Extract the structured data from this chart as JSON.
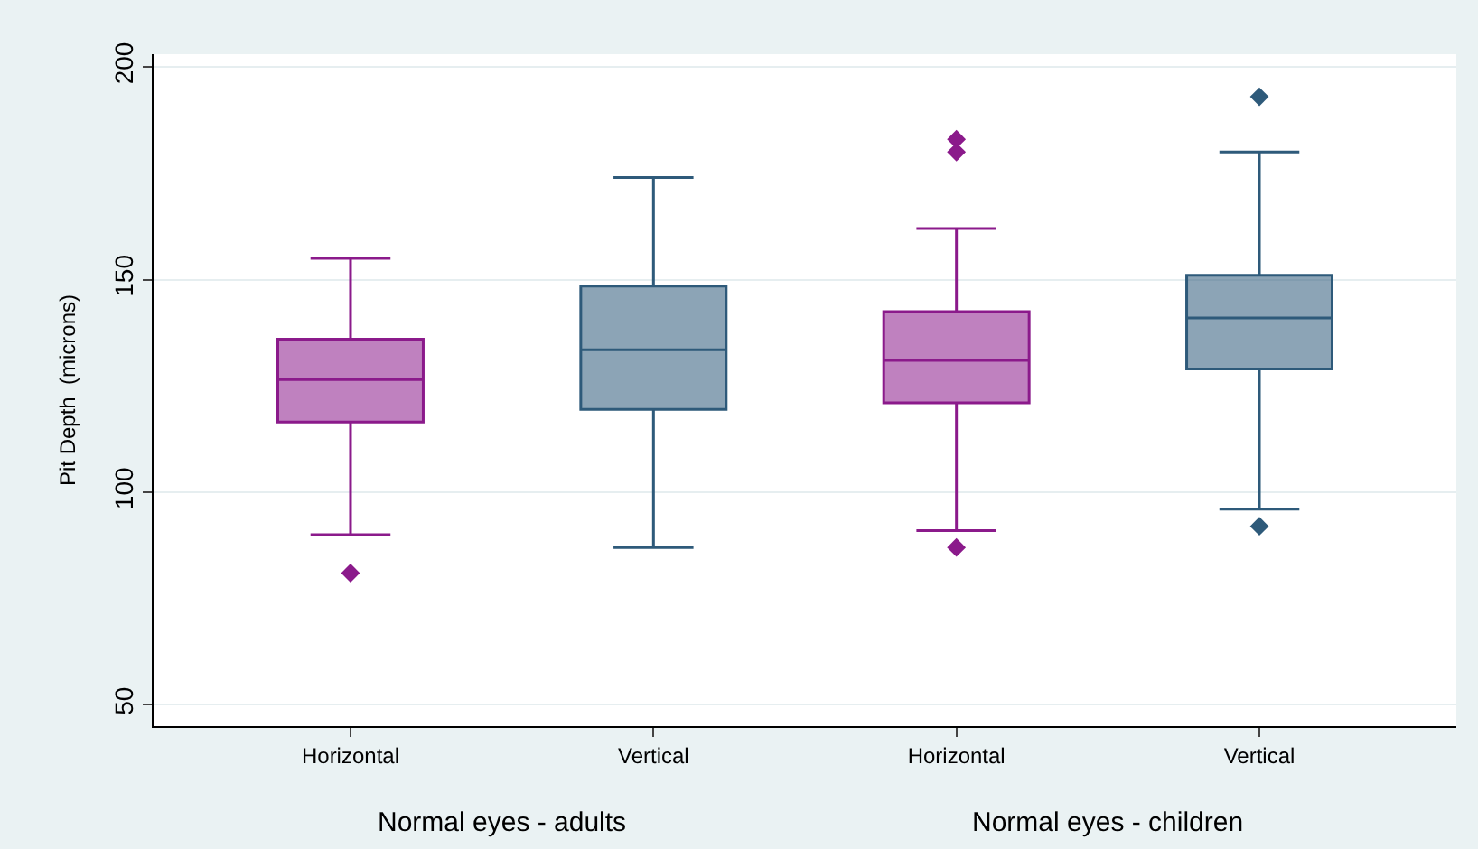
{
  "chart_data": {
    "type": "box",
    "ylabel": "Pit Depth  (microns)",
    "categories": [
      "Horizontal",
      "Vertical",
      "Horizontal",
      "Vertical"
    ],
    "colors": [
      "#8b1a8b",
      "#2e5a7a",
      "#8b1a8b",
      "#2e5a7a"
    ],
    "boxes": [
      {
        "low": 90,
        "q1": 116.5,
        "median": 126.5,
        "q3": 136,
        "high": 155,
        "outliers": [
          81
        ]
      },
      {
        "low": 87,
        "q1": 119.5,
        "median": 133.5,
        "q3": 148.5,
        "high": 174
      },
      {
        "low": 91,
        "q1": 121,
        "median": 131,
        "q3": 142.5,
        "high": 162,
        "outliers": [
          183,
          180,
          87
        ]
      },
      {
        "low": 96,
        "q1": 129,
        "median": 141,
        "q3": 151,
        "high": 180,
        "outliers": [
          193,
          92
        ]
      }
    ],
    "annotations": [
      "Normal eyes - adults",
      "Normal eyes - children"
    ],
    "ylim": [
      45,
      203
    ],
    "yticks": [
      50,
      100,
      150,
      200
    ],
    "grid": "y",
    "marker": "diamond"
  }
}
